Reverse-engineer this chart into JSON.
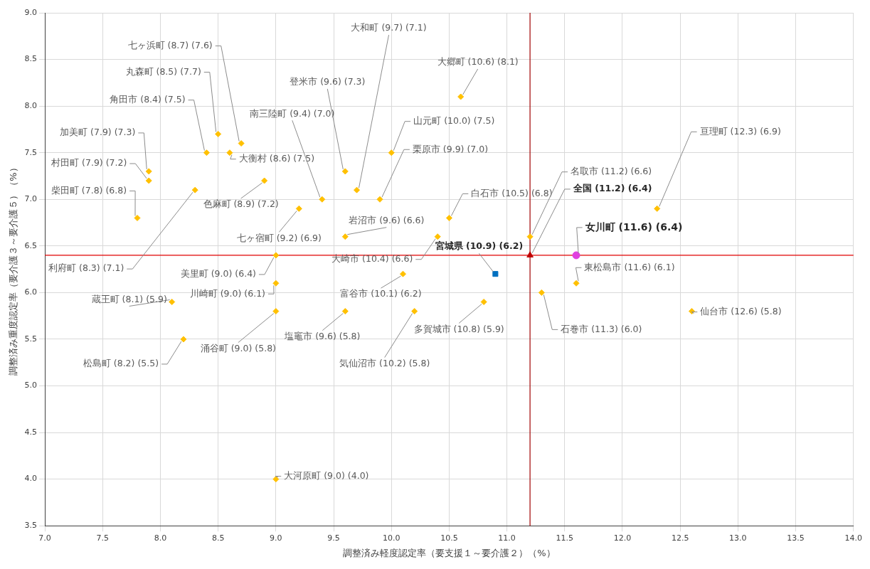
{
  "chart_data": {
    "type": "scatter",
    "xlabel": "調整済み軽度認定率（要支援１～要介護２）（%）",
    "ylabel": "調整済み重度認定率（要介護３～要介護５）（%）",
    "xlim": [
      7,
      14
    ],
    "ylim": [
      3.5,
      9
    ],
    "xticks": [
      {
        "value": 7,
        "label": "7.0"
      },
      {
        "value": 7.5,
        "label": "7.5"
      },
      {
        "value": 8,
        "label": "8.0"
      },
      {
        "value": 8.5,
        "label": "8.5"
      },
      {
        "value": 9,
        "label": "9.0"
      },
      {
        "value": 9.5,
        "label": "9.5"
      },
      {
        "value": 10,
        "label": "10.0"
      },
      {
        "value": 10.5,
        "label": "10.5"
      },
      {
        "value": 11,
        "label": "11.0"
      },
      {
        "value": 11.5,
        "label": "11.5"
      },
      {
        "value": 12,
        "label": "12.0"
      },
      {
        "value": 12.5,
        "label": "12.5"
      },
      {
        "value": 13,
        "label": "13.0"
      },
      {
        "value": 13.5,
        "label": "13.5"
      },
      {
        "value": 14,
        "label": "14.0"
      }
    ],
    "yticks": [
      {
        "value": 3.5,
        "label": "3.5"
      },
      {
        "value": 4,
        "label": "4.0"
      },
      {
        "value": 4.5,
        "label": "4.5"
      },
      {
        "value": 5,
        "label": "5.0"
      },
      {
        "value": 5.5,
        "label": "5.5"
      },
      {
        "value": 6,
        "label": "6.0"
      },
      {
        "value": 6.5,
        "label": "6.5"
      },
      {
        "value": 7,
        "label": "7.0"
      },
      {
        "value": 7.5,
        "label": "7.5"
      },
      {
        "value": 8,
        "label": "8.0"
      },
      {
        "value": 8.5,
        "label": "8.5"
      },
      {
        "value": 9,
        "label": "9.0"
      }
    ],
    "grid": true,
    "legend": false,
    "ref_lines": [
      {
        "axis": "x",
        "value": 11.2,
        "color": "#a00000"
      },
      {
        "axis": "y",
        "value": 6.4,
        "color": "#e00000"
      }
    ],
    "series": [
      {
        "color": "#ffc000",
        "marker": "diamond",
        "x": [
          8.7,
          8.5,
          8.4,
          7.9,
          7.9,
          7.8,
          8.3,
          8.1,
          8.2,
          8.6,
          8.9,
          9.2,
          9.0,
          9.0,
          9.0,
          9.0,
          9.4,
          9.6,
          9.7,
          9.6,
          9.6,
          10.6,
          10.0,
          9.9,
          10.5,
          10.4,
          10.1,
          10.2,
          10.8,
          11.2,
          11.3,
          11.6,
          12.3,
          12.6
        ],
        "values": [
          7.6,
          7.7,
          7.5,
          7.3,
          7.2,
          6.8,
          7.1,
          5.9,
          5.5,
          7.5,
          7.2,
          6.9,
          6.4,
          6.1,
          5.8,
          4.0,
          7.0,
          7.3,
          7.1,
          6.6,
          5.8,
          8.1,
          7.5,
          7.0,
          6.8,
          6.6,
          6.2,
          5.8,
          5.9,
          6.6,
          6.0,
          6.1,
          6.9,
          5.8
        ],
        "value_labels": [
          "七ヶ浜町 (8.7) (7.6)",
          "丸森町 (8.5) (7.7)",
          "角田市 (8.4) (7.5)",
          "加美町 (7.9) (7.3)",
          "村田町 (7.9) (7.2)",
          "柴田町 (7.8) (6.8)",
          "利府町 (8.3) (7.1)",
          "蔵王町 (8.1) (5.9)",
          "松島町 (8.2) (5.5)",
          "大衡村 (8.6) (7.5)",
          "色麻町 (8.9) (7.2)",
          "七ヶ宿町 (9.2) (6.9)",
          "美里町 (9.0) (6.4)",
          "川崎町 (9.0) (6.1)",
          "涌谷町 (9.0) (5.8)",
          "大河原町 (9.0) (4.0)",
          "南三陸町 (9.4) (7.0)",
          "登米市 (9.6) (7.3)",
          "大和町 (9.7) (7.1)",
          "岩沼市 (9.6) (6.6)",
          "塩竈市 (9.6) (5.8)",
          "大郷町 (10.6) (8.1)",
          "山元町 (10.0) (7.5)",
          "栗原市 (9.9) (7.0)",
          "白石市 (10.5) (6.8)",
          "大崎市 (10.4) (6.6)",
          "富谷市 (10.1) (6.2)",
          "気仙沼市 (10.2) (5.8)",
          "多賀城市 (10.8) (5.9)",
          "名取市 (11.2) (6.6)",
          "石巻市 (11.3) (6.0)",
          "東松島市 (11.6) (6.1)",
          "亘理町 (12.3) (6.9)",
          "仙台市 (12.6) (5.8)"
        ]
      },
      {
        "color": "#0070c0",
        "marker": "square",
        "x": [
          10.9
        ],
        "values": [
          6.2
        ],
        "value_labels": [
          "宮城県 (10.9) (6.2)"
        ]
      },
      {
        "color": "#c00000",
        "marker": "triangle",
        "x": [
          11.2
        ],
        "values": [
          6.4
        ],
        "value_labels": [
          "全国 (11.2) (6.4)"
        ]
      },
      {
        "color": "#e040e0",
        "marker": "circle",
        "x": [
          11.6
        ],
        "values": [
          6.4
        ],
        "value_labels": [
          "女川町 (11.6) (6.4)"
        ]
      }
    ]
  }
}
